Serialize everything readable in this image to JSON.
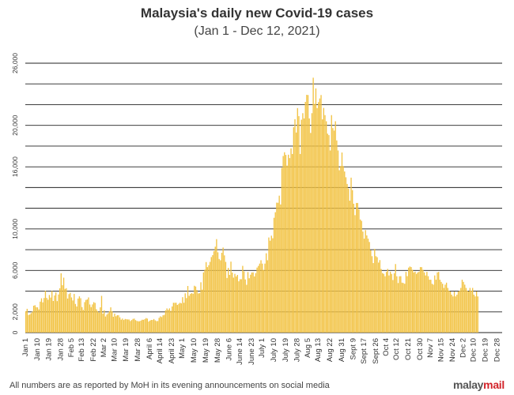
{
  "title": "Malaysia's daily new Covid-19 cases",
  "subtitle": "(Jan 1 - Dec 12, 2021)",
  "footnote": "All numbers are as reported by MoH in its evening announcements on social media",
  "brand": {
    "part1": "malay",
    "part2": "mail"
  },
  "colors": {
    "bar": "#f2c344",
    "bar_stroke": "#e1b02d",
    "grid": "#222222",
    "text": "#333333"
  },
  "chart_data": {
    "type": "bar",
    "title": "Malaysia's daily new Covid-19 cases",
    "subtitle": "(Jan 1 - Dec 12, 2021)",
    "xlabel": "",
    "ylabel": "",
    "ylim": [
      0,
      26000
    ],
    "yticks": [
      {
        "value": 0,
        "label": "0"
      },
      {
        "value": 2000,
        "label": "2,000"
      },
      {
        "value": 6000,
        "label": "6,000"
      },
      {
        "value": 10000,
        "label": "10,000"
      },
      {
        "value": 16000,
        "label": "16,000"
      },
      {
        "value": 20000,
        "label": "20,000"
      },
      {
        "value": 26000,
        "label": "26,000"
      }
    ],
    "gridlines": [
      0,
      2000,
      4000,
      6000,
      8000,
      10000,
      12000,
      14000,
      16000,
      18000,
      20000,
      22000,
      24000,
      26000
    ],
    "xticks": [
      {
        "label": "Jan 1",
        "day": 1
      },
      {
        "label": "Jan 10",
        "day": 10
      },
      {
        "label": "Jan 19",
        "day": 19
      },
      {
        "label": "Jan 28",
        "day": 28
      },
      {
        "label": "Feb 5",
        "day": 36
      },
      {
        "label": "Feb 13",
        "day": 44
      },
      {
        "label": "Feb 22",
        "day": 53
      },
      {
        "label": "Mar 2",
        "day": 61
      },
      {
        "label": "Mar 10",
        "day": 69
      },
      {
        "label": "Mar 19",
        "day": 78
      },
      {
        "label": "Mar 28",
        "day": 87
      },
      {
        "label": "April 6",
        "day": 96
      },
      {
        "label": "April 14",
        "day": 104
      },
      {
        "label": "April 23",
        "day": 113
      },
      {
        "label": "May 1",
        "day": 121
      },
      {
        "label": "May 10",
        "day": 130
      },
      {
        "label": "May 19",
        "day": 139
      },
      {
        "label": "May 28",
        "day": 148
      },
      {
        "label": "June 6",
        "day": 157
      },
      {
        "label": "June 14",
        "day": 165
      },
      {
        "label": "June 23",
        "day": 174
      },
      {
        "label": "July 1",
        "day": 182
      },
      {
        "label": "July 10",
        "day": 191
      },
      {
        "label": "July 19",
        "day": 200
      },
      {
        "label": "July 28",
        "day": 209
      },
      {
        "label": "Aug 5",
        "day": 217
      },
      {
        "label": "Aug 13",
        "day": 225
      },
      {
        "label": "Aug 22",
        "day": 234
      },
      {
        "label": "Aug 31",
        "day": 243
      },
      {
        "label": "Sept 9",
        "day": 252
      },
      {
        "label": "Sept 17",
        "day": 260
      },
      {
        "label": "Sept 26",
        "day": 269
      },
      {
        "label": "Oct 4",
        "day": 277
      },
      {
        "label": "Oct 12",
        "day": 285
      },
      {
        "label": "Oct 21",
        "day": 294
      },
      {
        "label": "Oct 30",
        "day": 303
      },
      {
        "label": "Nov 7",
        "day": 311
      },
      {
        "label": "Nov 15",
        "day": 319
      },
      {
        "label": "Nov 24",
        "day": 328
      },
      {
        "label": "Dec 2",
        "day": 336
      },
      {
        "label": "Dec 10",
        "day": 344
      },
      {
        "label": "Dec 19",
        "day": 353
      },
      {
        "label": "Dec 28",
        "day": 362
      }
    ],
    "x": {
      "start": "2021-01-01",
      "end": "2021-12-12"
    },
    "values": [
      2068,
      2295,
      1704,
      1741,
      1870,
      2027,
      2593,
      2643,
      2451,
      2433,
      2232,
      2985,
      3309,
      2916,
      3337,
      4029,
      3346,
      3170,
      3631,
      3379,
      4008,
      3048,
      3584,
      3876,
      3038,
      3680,
      4275,
      5725,
      4571,
      5298,
      4214,
      4284,
      3288,
      3714,
      3847,
      3391,
      3100,
      3731,
      2764,
      2521,
      3288,
      3499,
      3318,
      2464,
      2176,
      2941,
      3150,
      3199,
      3394,
      2712,
      2461,
      2720,
      2936,
      2868,
      2253,
      2078,
      1924,
      2437,
      3545,
      1828,
      2154,
      1555,
      1745,
      1869,
      2063,
      2438,
      2055,
      1529,
      1828,
      1575,
      1680,
      1671,
      1470,
      1247,
      1354,
      1213,
      1316,
      1290,
      1269,
      1264,
      1116,
      1209,
      1321,
      1349,
      1203,
      1128,
      1093,
      1095,
      1148,
      1240,
      1233,
      1290,
      1400,
      1349,
      1070,
      1155,
      1221,
      1216,
      1309,
      1184,
      1110,
      1114,
      1424,
      1567,
      1500,
      1670,
      1707,
      2148,
      2331,
      2195,
      2340,
      2100,
      2524,
      2876,
      2875,
      2881,
      2668,
      2776,
      2881,
      2822,
      3418,
      2880,
      3788,
      3332,
      4498,
      3551,
      3734,
      3809,
      3744,
      4519,
      4446,
      4113,
      3780,
      3807,
      4855,
      4140,
      5809,
      6075,
      6806,
      6320,
      6509,
      6824,
      7289,
      7478,
      7857,
      8290,
      9020,
      7748,
      7105,
      6976,
      7703,
      8209,
      7452,
      6824,
      5271,
      6241,
      5566,
      6849,
      5793,
      5304,
      5671,
      5419,
      5566,
      4949,
      5150,
      5150,
      6439,
      5911,
      5127,
      4611,
      5841,
      5244,
      5586,
      5803,
      5812,
      5419,
      5737,
      6276,
      6437,
      6658,
      6982,
      6658,
      6045,
      6658,
      7654,
      6982,
      9180,
      8868,
      9353,
      9105,
      11079,
      11618,
      12541,
      12528,
      13215,
      12366,
      15902,
      17045,
      17405,
      17150,
      16117,
      17170,
      16840,
      17786,
      17236,
      19819,
      20596,
      19307,
      21668,
      20889,
      17236,
      20546,
      21176,
      20670,
      22262,
      22948,
      22928,
      20670,
      19268,
      21176,
      24599,
      22070,
      23564,
      21668,
      22242,
      22597,
      22929,
      20579,
      21685,
      20989,
      20396,
      19198,
      19057,
      17577,
      20988,
      19733,
      19495,
      20396,
      18547,
      17577,
      15669,
      16073,
      17380,
      16073,
      15549,
      14990,
      14345,
      13899,
      12728,
      14954,
      13754,
      12434,
      11332,
      12510,
      12510,
      11889,
      10915,
      10783,
      9751,
      9066,
      9890,
      9380,
      9066,
      8743,
      7950,
      7374,
      6709,
      8075,
      7373,
      7276,
      6756,
      6996,
      6145,
      5745,
      5666,
      5434,
      5859,
      6145,
      5516,
      5880,
      5666,
      5073,
      5726,
      6615,
      5434,
      4782,
      5434,
      5446,
      4819,
      4782,
      4711,
      5859,
      5446,
      6270,
      6380,
      6323,
      6060,
      5809,
      5880,
      5666,
      5809,
      5880,
      6323,
      6315,
      6060,
      5809,
      5516,
      5859,
      5446,
      5102,
      5102,
      4710,
      4626,
      5516,
      5102,
      5809,
      5859,
      5100,
      4892,
      4710,
      4310,
      4626,
      4819,
      4310,
      4040,
      3962,
      3662,
      3490,
      3962,
      3490,
      3662,
      3962,
      4040,
      4310,
      5102,
      4892,
      4626,
      4310,
      4040,
      3962,
      4310,
      4040,
      4310,
      3662,
      3490,
      3962,
      3490
    ]
  }
}
